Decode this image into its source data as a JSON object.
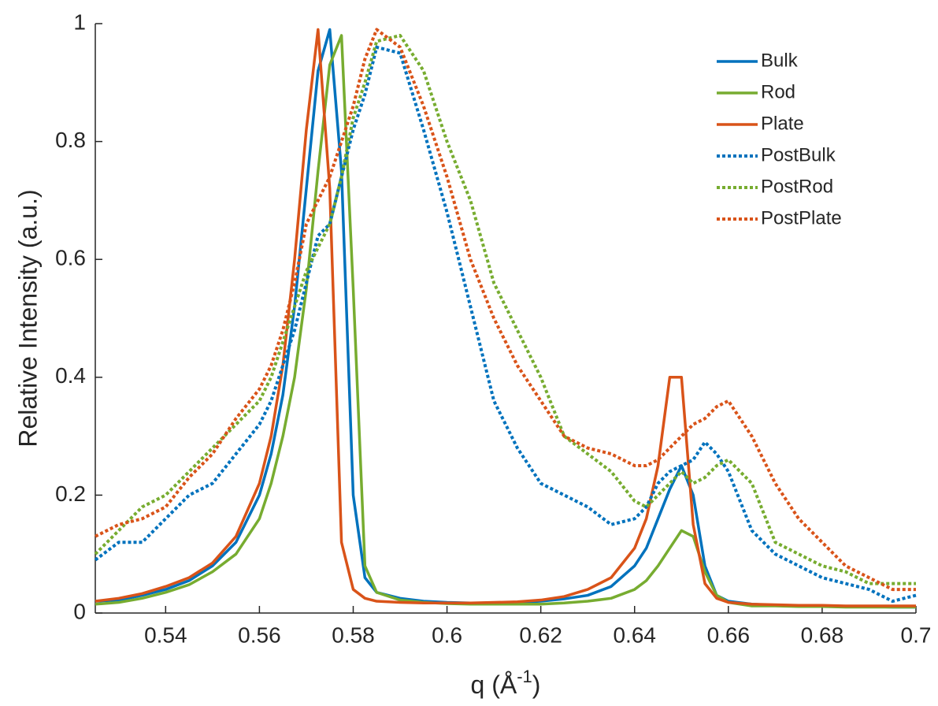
{
  "chart_data": {
    "type": "line",
    "y_label": "Relative Intensity (a.u.)",
    "x_label_parts": [
      "q (Å",
      "-1",
      ")"
    ],
    "xlim": [
      0.525,
      0.7
    ],
    "ylim": [
      0,
      1
    ],
    "xticks": [
      0.54,
      0.56,
      0.58,
      0.6,
      0.62,
      0.64,
      0.66,
      0.68,
      0.7
    ],
    "yticks": [
      0,
      0.2,
      0.4,
      0.6,
      0.8,
      1
    ],
    "legend": "upper-right",
    "x": [
      0.525,
      0.53,
      0.535,
      0.54,
      0.545,
      0.55,
      0.555,
      0.56,
      0.5625,
      0.565,
      0.5675,
      0.57,
      0.5725,
      0.575,
      0.5775,
      0.58,
      0.5825,
      0.585,
      0.59,
      0.595,
      0.6,
      0.605,
      0.61,
      0.615,
      0.62,
      0.625,
      0.63,
      0.635,
      0.64,
      0.6425,
      0.645,
      0.6475,
      0.65,
      0.6525,
      0.655,
      0.6575,
      0.66,
      0.665,
      0.67,
      0.675,
      0.68,
      0.685,
      0.69,
      0.695,
      0.7
    ],
    "series": [
      {
        "name": "Bulk",
        "color": "#0072bd",
        "style": "solid",
        "values": [
          0.02,
          0.022,
          0.03,
          0.04,
          0.055,
          0.08,
          0.12,
          0.2,
          0.27,
          0.37,
          0.52,
          0.72,
          0.92,
          0.99,
          0.75,
          0.2,
          0.06,
          0.035,
          0.025,
          0.02,
          0.018,
          0.017,
          0.017,
          0.018,
          0.02,
          0.024,
          0.03,
          0.045,
          0.08,
          0.11,
          0.16,
          0.21,
          0.25,
          0.2,
          0.08,
          0.03,
          0.02,
          0.015,
          0.013,
          0.012,
          0.012,
          0.011,
          0.011,
          0.01,
          0.01
        ]
      },
      {
        "name": "Rod",
        "color": "#77ac30",
        "style": "solid",
        "values": [
          0.015,
          0.018,
          0.025,
          0.035,
          0.048,
          0.07,
          0.1,
          0.16,
          0.22,
          0.3,
          0.4,
          0.55,
          0.75,
          0.93,
          0.98,
          0.55,
          0.08,
          0.035,
          0.022,
          0.018,
          0.016,
          0.015,
          0.015,
          0.015,
          0.015,
          0.017,
          0.02,
          0.025,
          0.04,
          0.055,
          0.08,
          0.11,
          0.14,
          0.13,
          0.07,
          0.03,
          0.018,
          0.012,
          0.012,
          0.011,
          0.011,
          0.01,
          0.01,
          0.01,
          0.01
        ]
      },
      {
        "name": "Plate",
        "color": "#d95319",
        "style": "solid",
        "values": [
          0.02,
          0.025,
          0.033,
          0.045,
          0.06,
          0.085,
          0.13,
          0.22,
          0.3,
          0.42,
          0.6,
          0.82,
          0.99,
          0.72,
          0.12,
          0.04,
          0.025,
          0.02,
          0.018,
          0.017,
          0.017,
          0.017,
          0.018,
          0.019,
          0.022,
          0.028,
          0.04,
          0.06,
          0.11,
          0.16,
          0.25,
          0.4,
          0.4,
          0.15,
          0.05,
          0.025,
          0.018,
          0.015,
          0.014,
          0.013,
          0.013,
          0.012,
          0.012,
          0.012,
          0.012
        ]
      },
      {
        "name": "PostBulk",
        "color": "#0072bd",
        "style": "dotted",
        "values": [
          0.09,
          0.12,
          0.12,
          0.16,
          0.2,
          0.22,
          0.27,
          0.32,
          0.36,
          0.42,
          0.48,
          0.56,
          0.64,
          0.66,
          0.74,
          0.82,
          0.88,
          0.96,
          0.95,
          0.82,
          0.68,
          0.52,
          0.36,
          0.28,
          0.22,
          0.2,
          0.18,
          0.15,
          0.16,
          0.18,
          0.22,
          0.24,
          0.25,
          0.26,
          0.29,
          0.27,
          0.24,
          0.14,
          0.1,
          0.08,
          0.06,
          0.05,
          0.04,
          0.02,
          0.03
        ]
      },
      {
        "name": "PostRod",
        "color": "#77ac30",
        "style": "dotted",
        "values": [
          0.1,
          0.14,
          0.18,
          0.2,
          0.24,
          0.28,
          0.32,
          0.36,
          0.4,
          0.46,
          0.52,
          0.58,
          0.62,
          0.66,
          0.74,
          0.84,
          0.9,
          0.97,
          0.98,
          0.92,
          0.8,
          0.7,
          0.56,
          0.48,
          0.4,
          0.3,
          0.27,
          0.24,
          0.19,
          0.18,
          0.2,
          0.22,
          0.24,
          0.22,
          0.23,
          0.25,
          0.26,
          0.22,
          0.12,
          0.1,
          0.08,
          0.07,
          0.05,
          0.05,
          0.05
        ]
      },
      {
        "name": "PostPlate",
        "color": "#d95319",
        "style": "dotted",
        "values": [
          0.13,
          0.15,
          0.16,
          0.18,
          0.23,
          0.27,
          0.33,
          0.38,
          0.42,
          0.48,
          0.56,
          0.66,
          0.7,
          0.74,
          0.8,
          0.86,
          0.94,
          0.99,
          0.96,
          0.86,
          0.74,
          0.6,
          0.5,
          0.42,
          0.36,
          0.3,
          0.28,
          0.27,
          0.25,
          0.25,
          0.26,
          0.28,
          0.3,
          0.32,
          0.33,
          0.35,
          0.36,
          0.3,
          0.22,
          0.16,
          0.12,
          0.08,
          0.06,
          0.04,
          0.04
        ]
      }
    ]
  }
}
